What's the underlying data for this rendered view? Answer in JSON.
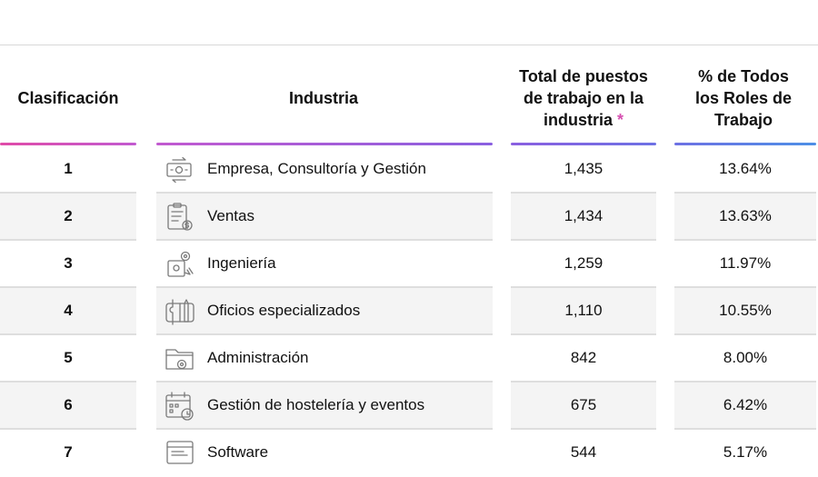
{
  "table": {
    "headers": {
      "rank": "Clasificación",
      "industry": "Industria",
      "total_line1": "Total de puestos",
      "total_line2": "de trabajo en la",
      "total_line3": "industria",
      "total_mark": "*",
      "pct_line1": "% de Todos",
      "pct_line2": "los Roles de",
      "pct_line3": "Trabajo"
    },
    "rows": [
      {
        "rank": "1",
        "industry": "Empresa, Consultoría y Gestión",
        "total": "1,435",
        "pct": "13.64%",
        "icon": "money-exchange-icon"
      },
      {
        "rank": "2",
        "industry": "Ventas",
        "total": "1,434",
        "pct": "13.63%",
        "icon": "sales-clipboard-icon"
      },
      {
        "rank": "3",
        "industry": "Ingeniería",
        "total": "1,259",
        "pct": "11.97%",
        "icon": "engineering-gear-icon"
      },
      {
        "rank": "4",
        "industry": "Oficios especializados",
        "total": "1,110",
        "pct": "10.55%",
        "icon": "tools-icon"
      },
      {
        "rank": "5",
        "industry": "Administración",
        "total": "842",
        "pct": "8.00%",
        "icon": "folder-gear-icon"
      },
      {
        "rank": "6",
        "industry": "Gestión de hostelería y eventos",
        "total": "675",
        "pct": "6.42%",
        "icon": "calendar-clock-icon"
      },
      {
        "rank": "7",
        "industry": "Software",
        "total": "544",
        "pct": "5.17%",
        "icon": "software-window-icon"
      }
    ]
  },
  "colors": {
    "asterisk": "#d64fb0",
    "gradient_start": "#e04ba8",
    "gradient_mid": "#8a5fe0",
    "gradient_end": "#4d8fe6",
    "alt_row": "#f4f4f4"
  }
}
